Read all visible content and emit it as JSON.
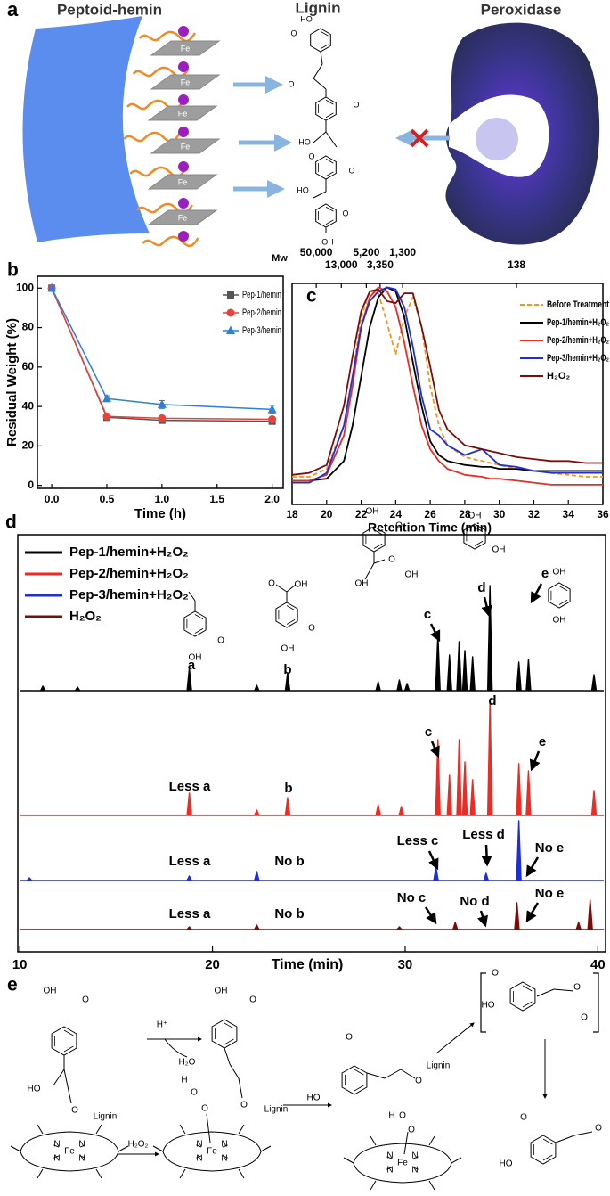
{
  "chart_data": [
    {
      "type": "line",
      "panel_label": "b",
      "x_label": "Time (h)",
      "y_label": "Residual Weight (%)",
      "x": [
        0,
        0.5,
        1,
        2
      ],
      "series": [
        {
          "name": "Pep-1/hemin",
          "color": "#555555",
          "marker": "square",
          "values": [
            100,
            34.5,
            33,
            32.5
          ],
          "errors": [
            1,
            1,
            1,
            1
          ]
        },
        {
          "name": "Pep-2/hemin",
          "color": "#e8433a",
          "marker": "circle",
          "values": [
            100,
            35,
            34,
            33.5
          ],
          "errors": [
            1,
            1,
            1,
            1
          ]
        },
        {
          "name": "Pep-3/hemin",
          "color": "#2f7ed8",
          "marker": "triangle",
          "values": [
            100,
            44,
            41,
            38.5
          ],
          "errors": [
            1,
            1.5,
            2,
            2
          ]
        }
      ],
      "xlim": [
        -0.13,
        2.1
      ],
      "ylim": [
        -1.5,
        106
      ],
      "xticks": [
        {
          "value": 0,
          "label": "0.0"
        },
        {
          "value": 0.5,
          "label": "0.5"
        },
        {
          "value": 1,
          "label": "1.0"
        },
        {
          "value": 1.5,
          "label": "1.5"
        },
        {
          "value": 2,
          "label": "2.0"
        }
      ],
      "yticks": [
        0,
        20,
        40,
        60,
        80,
        100
      ],
      "grid": false,
      "legend": "upper right"
    },
    {
      "type": "line",
      "panel_label": "c",
      "x_label": "Retention Time (min)",
      "top_axis_label": "Mw",
      "top_ticks": [
        {
          "value": 19.4,
          "label": "50,000"
        },
        {
          "value": 20.85,
          "label": "13,000"
        },
        {
          "value": 22.3,
          "label": "5,200"
        },
        {
          "value": 23.1,
          "label": "3,350"
        },
        {
          "value": 24.4,
          "label": "1,300"
        },
        {
          "value": 31.0,
          "label": "138"
        }
      ],
      "x": [
        18,
        19,
        20,
        21,
        21.5,
        22,
        22.5,
        23,
        23.5,
        24,
        24.5,
        25,
        25.5,
        26,
        26.5,
        27,
        28,
        29,
        29.5,
        30,
        31,
        32,
        33,
        34,
        35,
        36
      ],
      "series": [
        {
          "name": "Before Treatment",
          "color": "#f7941d",
          "dash": true,
          "values": [
            0.04,
            0.04,
            0.08,
            0.3,
            0.55,
            0.85,
            0.98,
            0.97,
            0.82,
            0.66,
            0.85,
            0.95,
            0.8,
            0.5,
            0.3,
            0.2,
            0.14,
            0.12,
            0.11,
            0.1,
            0.08,
            0.07,
            0.06,
            0.05,
            0.04,
            0.04
          ]
        },
        {
          "name": "Pep-1/hemin+H₂O₂",
          "color": "#000000",
          "dash": false,
          "values": [
            0.02,
            0.02,
            0.03,
            0.12,
            0.3,
            0.55,
            0.8,
            0.95,
            1.0,
            0.98,
            0.85,
            0.62,
            0.4,
            0.22,
            0.15,
            0.12,
            0.1,
            0.09,
            0.09,
            0.08,
            0.08,
            0.07,
            0.07,
            0.07,
            0.07,
            0.07
          ]
        },
        {
          "name": "Pep-2/hemin+H₂O₂",
          "color": "#ee2a24",
          "dash": false,
          "values": [
            0.02,
            0.02,
            0.05,
            0.25,
            0.5,
            0.8,
            0.95,
            1.0,
            0.98,
            0.9,
            0.72,
            0.5,
            0.3,
            0.18,
            0.12,
            0.08,
            0.05,
            0.04,
            0.03,
            0.03,
            0.02,
            0.01,
            0,
            0,
            0,
            0
          ]
        },
        {
          "name": "Pep-3/hemin+H₂O₂",
          "color": "#1f2fd1",
          "dash": false,
          "values": [
            0.01,
            0.01,
            0.06,
            0.3,
            0.55,
            0.8,
            0.93,
            0.98,
            1.0,
            0.99,
            0.9,
            0.7,
            0.45,
            0.28,
            0.25,
            0.2,
            0.15,
            0.18,
            0.14,
            0.1,
            0.09,
            0.07,
            0.06,
            0.06,
            0.06,
            0.06
          ]
        },
        {
          "name": "H₂O₂",
          "color": "#7b0c0c",
          "dash": false,
          "values": [
            0.05,
            0.06,
            0.1,
            0.4,
            0.65,
            0.88,
            0.98,
            0.99,
            0.93,
            0.92,
            0.97,
            0.97,
            0.8,
            0.6,
            0.38,
            0.28,
            0.2,
            0.18,
            0.17,
            0.16,
            0.14,
            0.13,
            0.12,
            0.12,
            0.11,
            0.11
          ]
        }
      ],
      "xlim": [
        18,
        36
      ],
      "ylim": [
        -0.1,
        1.02
      ],
      "xticks": [
        18,
        20,
        22,
        24,
        26,
        28,
        30,
        32,
        34,
        36
      ],
      "legend": "upper right"
    },
    {
      "type": "chromatogram",
      "panel_label": "d",
      "x_label": "Time (min)",
      "xlim": [
        9.9,
        40.4
      ],
      "xticks": [
        10,
        20,
        30,
        40
      ],
      "legend": "upper left",
      "series": [
        {
          "name": "Pep-1/hemin+H₂O₂",
          "color": "#000000",
          "x": [
            11.2,
            13,
            18.8,
            22.3,
            23.9,
            28.6,
            29.7,
            30.1,
            31.7,
            32.3,
            32.8,
            33.1,
            33.5,
            34.4,
            35.9,
            36.4,
            39.8
          ],
          "values": [
            5,
            4,
            25,
            6,
            20,
            10,
            12,
            8,
            63,
            40,
            55,
            45,
            38,
            118,
            32,
            35,
            18
          ],
          "annotations": [
            "a",
            "b",
            "c",
            "d",
            "e"
          ]
        },
        {
          "name": "Pep-2/hemin+H₂O₂",
          "color": "#ee2a24",
          "x": [
            18.8,
            22.3,
            23.9,
            28.6,
            29.8,
            31.7,
            32.3,
            32.8,
            33.1,
            33.5,
            34.4,
            35.9,
            36.4,
            39.8
          ],
          "values": [
            25,
            6,
            20,
            12,
            10,
            85,
            45,
            85,
            60,
            40,
            128,
            58,
            50,
            28
          ],
          "annotations": [
            "Less a",
            "b",
            "c",
            "d",
            "e"
          ]
        },
        {
          "name": "Pep-3/hemin+H₂O₂",
          "color": "#1f2fd1",
          "x": [
            10.5,
            18.8,
            22.3,
            31.6,
            34.2,
            35.9
          ],
          "values": [
            3,
            5,
            10,
            15,
            8,
            67
          ],
          "annotations": [
            "Less a",
            "No b",
            "Less c",
            "Less d",
            "No e"
          ]
        },
        {
          "name": "H₂O₂",
          "color": "#7b0c0c",
          "x": [
            18.8,
            22.3,
            29.7,
            32.6,
            35.8,
            39.0,
            39.6
          ],
          "values": [
            3,
            5,
            3,
            8,
            30,
            8,
            33
          ],
          "annotations": [
            "Less a",
            "No b",
            "No c",
            "No d",
            "No e"
          ]
        }
      ]
    }
  ],
  "panel_a": {
    "label": "a",
    "titles": [
      "Peptoid-hemin",
      "Lignin",
      "Peroxidase"
    ],
    "fe_labels": [
      "Fe",
      "Fe",
      "Fe",
      "Fe",
      "Fe",
      "Fe"
    ],
    "lignin_texts": [
      "HO",
      "O",
      "O",
      "O",
      "HO",
      "O",
      "O",
      "HO",
      "O",
      "OH"
    ]
  },
  "structures_d": [
    "O",
    "OH",
    "O",
    "OH",
    "O",
    "OH",
    "OH",
    "O",
    "OH",
    "O",
    "OH",
    "OH",
    "OH",
    "OH",
    "OH"
  ],
  "panel_e": {
    "label": "e",
    "texts": [
      "OH",
      "O",
      "HO",
      "O",
      "Lignin",
      "H⁺",
      "H₂O",
      "OH",
      "O",
      "O",
      "Lignin",
      "N",
      "N",
      "N",
      "N",
      "Fe",
      "H₂O₂",
      "H",
      "O",
      "O",
      "N",
      "N",
      "N",
      "N",
      "Fe",
      "O",
      "HO",
      "Lignin",
      "O",
      "H",
      "O",
      "O",
      "N",
      "N",
      "N",
      "N",
      "Fe",
      "O",
      "HO",
      "O",
      "O",
      "O",
      "HO",
      "O"
    ]
  }
}
